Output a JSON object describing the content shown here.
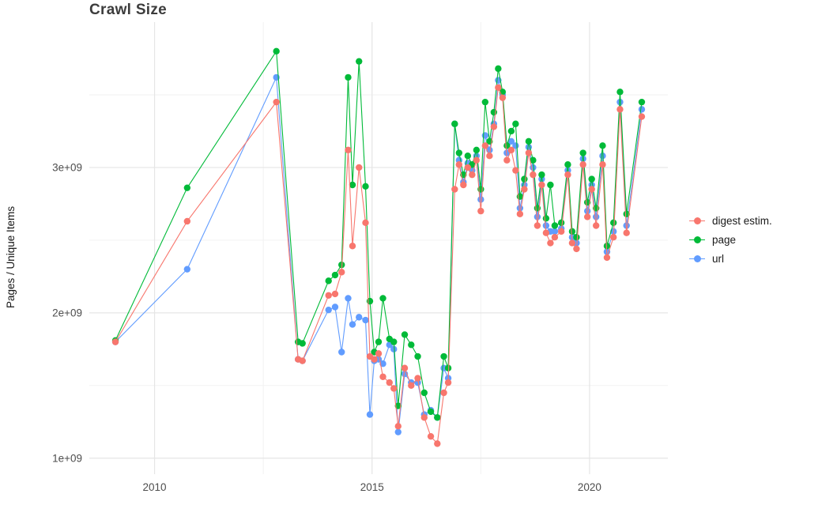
{
  "title": "Crawl Size",
  "y_axis": {
    "label": "Pages / Unique Items",
    "ticks": [
      {
        "v": 1,
        "label": "1e+09"
      },
      {
        "v": 2,
        "label": "2e+09"
      },
      {
        "v": 3,
        "label": "3e+09"
      }
    ],
    "minor": [
      1.5,
      2.5,
      3.5
    ]
  },
  "x_axis": {
    "ticks": [
      {
        "v": 2010,
        "label": "2010"
      },
      {
        "v": 2015,
        "label": "2015"
      },
      {
        "v": 2020,
        "label": "2020"
      }
    ],
    "minor": [
      2012.5,
      2017.5
    ]
  },
  "legend": {
    "position": "right",
    "items": [
      {
        "label": "digest estim.",
        "color": "#F8766D"
      },
      {
        "label": "page",
        "color": "#00BA38"
      },
      {
        "label": "url",
        "color": "#619CFF"
      }
    ]
  },
  "colors": {
    "background": "#ffffff",
    "grid_major": "#e5e5e5",
    "grid_minor": "#f2f2f2",
    "tick_text": "#4d4d4d",
    "digest": "#F8766D",
    "page": "#00BA38",
    "url": "#619CFF"
  },
  "chart_data": {
    "type": "line",
    "title": "Crawl Size",
    "xlabel": "",
    "ylabel": "Pages / Unique Items",
    "y_values_unit": "billions (value × 1e9)",
    "xlim": [
      2008.5,
      2021.8
    ],
    "ylim": [
      0.89,
      4.0
    ],
    "grid": true,
    "legend_position": "right",
    "x": [
      2009.1,
      2010.75,
      2012.8,
      2013.3,
      2013.4,
      2014.0,
      2014.15,
      2014.3,
      2014.45,
      2014.55,
      2014.7,
      2014.85,
      2014.95,
      2015.05,
      2015.15,
      2015.25,
      2015.4,
      2015.5,
      2015.6,
      2015.75,
      2015.9,
      2016.05,
      2016.2,
      2016.35,
      2016.5,
      2016.65,
      2016.75,
      2016.9,
      2017.0,
      2017.1,
      2017.2,
      2017.3,
      2017.4,
      2017.5,
      2017.6,
      2017.7,
      2017.8,
      2017.9,
      2018.0,
      2018.1,
      2018.2,
      2018.3,
      2018.4,
      2018.5,
      2018.6,
      2018.7,
      2018.8,
      2018.9,
      2019.0,
      2019.1,
      2019.2,
      2019.35,
      2019.5,
      2019.6,
      2019.7,
      2019.85,
      2019.95,
      2020.05,
      2020.15,
      2020.3,
      2020.4,
      2020.55,
      2020.7,
      2020.85,
      2021.2
    ],
    "series": [
      {
        "name": "digest estim.",
        "color": "#F8766D",
        "values": [
          1.8,
          2.63,
          3.45,
          1.68,
          1.67,
          2.12,
          2.13,
          2.28,
          3.12,
          2.46,
          3.0,
          2.62,
          1.7,
          1.68,
          1.72,
          1.56,
          1.52,
          1.48,
          1.22,
          1.62,
          1.5,
          1.55,
          1.28,
          1.15,
          1.1,
          1.45,
          1.52,
          2.85,
          3.02,
          2.88,
          3.0,
          2.95,
          3.05,
          2.7,
          3.15,
          3.08,
          3.28,
          3.55,
          3.48,
          3.05,
          3.12,
          2.98,
          2.68,
          2.85,
          3.1,
          2.95,
          2.6,
          2.88,
          2.55,
          2.48,
          2.52,
          2.56,
          2.95,
          2.48,
          2.44,
          3.02,
          2.66,
          2.85,
          2.6,
          3.02,
          2.38,
          2.52,
          3.4,
          2.55,
          3.35
        ]
      },
      {
        "name": "page",
        "color": "#00BA38",
        "values": [
          1.81,
          2.86,
          3.8,
          1.8,
          1.79,
          2.22,
          2.26,
          2.33,
          3.62,
          2.88,
          3.73,
          2.87,
          2.08,
          1.73,
          1.8,
          2.1,
          1.82,
          1.8,
          1.36,
          1.85,
          1.78,
          1.7,
          1.45,
          1.32,
          1.28,
          1.7,
          1.62,
          3.3,
          3.1,
          2.95,
          3.08,
          3.02,
          3.12,
          2.85,
          3.45,
          3.18,
          3.38,
          3.68,
          3.52,
          3.15,
          3.25,
          3.3,
          2.8,
          2.92,
          3.18,
          3.05,
          2.72,
          2.95,
          2.65,
          2.88,
          2.6,
          2.62,
          3.02,
          2.56,
          2.52,
          3.1,
          2.76,
          2.92,
          2.72,
          3.15,
          2.46,
          2.62,
          3.52,
          2.68,
          3.45
        ]
      },
      {
        "name": "url",
        "color": "#619CFF",
        "values": [
          1.8,
          2.3,
          3.62,
          1.68,
          1.67,
          2.02,
          2.04,
          1.73,
          2.1,
          1.92,
          1.97,
          1.95,
          1.3,
          1.67,
          1.68,
          1.65,
          1.78,
          1.75,
          1.18,
          1.58,
          1.52,
          1.52,
          1.3,
          1.33,
          1.28,
          1.62,
          1.55,
          3.3,
          3.05,
          2.9,
          3.03,
          2.98,
          3.08,
          2.78,
          3.22,
          3.12,
          3.3,
          3.6,
          3.5,
          3.1,
          3.18,
          3.15,
          2.72,
          2.88,
          3.14,
          3.0,
          2.66,
          2.92,
          2.6,
          2.56,
          2.56,
          2.58,
          2.98,
          2.52,
          2.48,
          3.06,
          2.7,
          2.88,
          2.66,
          3.08,
          2.42,
          2.56,
          3.45,
          2.6,
          3.4
        ]
      }
    ]
  }
}
